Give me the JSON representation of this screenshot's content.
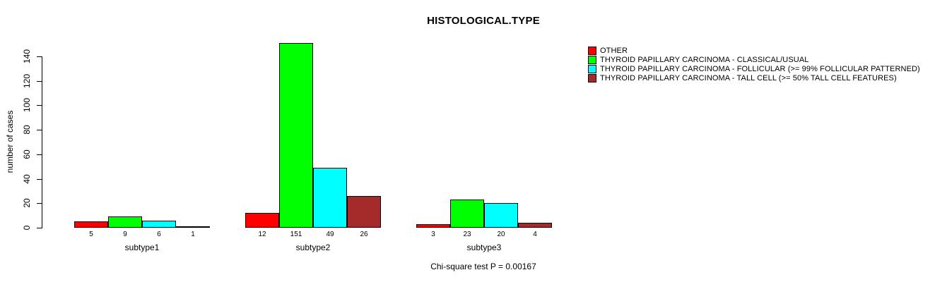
{
  "chart_data": {
    "type": "bar",
    "title": "HISTOLOGICAL.TYPE",
    "ylabel": "number of cases",
    "xlabel": "",
    "caption": "Chi-square test P = 0.00167",
    "categories": [
      "subtype1",
      "subtype2",
      "subtype3"
    ],
    "yticks": [
      0,
      20,
      40,
      60,
      80,
      100,
      120,
      140
    ],
    "ylim": [
      0,
      140
    ],
    "grid": false,
    "legend_position": "top-right",
    "bar_value_labels_shown": true,
    "series": [
      {
        "name": "OTHER",
        "color": "#FF0000",
        "values": [
          5,
          12,
          3
        ]
      },
      {
        "name": "THYROID PAPILLARY CARCINOMA - CLASSICAL/USUAL",
        "color": "#00FF00",
        "values": [
          9,
          151,
          23
        ]
      },
      {
        "name": "THYROID PAPILLARY CARCINOMA - FOLLICULAR (>= 99% FOLLICULAR PATTERNED)",
        "color": "#00FFFF",
        "values": [
          6,
          49,
          20
        ]
      },
      {
        "name": "THYROID PAPILLARY CARCINOMA - TALL CELL (>= 50% TALL CELL FEATURES)",
        "color": "#A52A2A",
        "values": [
          1,
          26,
          4
        ]
      }
    ]
  }
}
